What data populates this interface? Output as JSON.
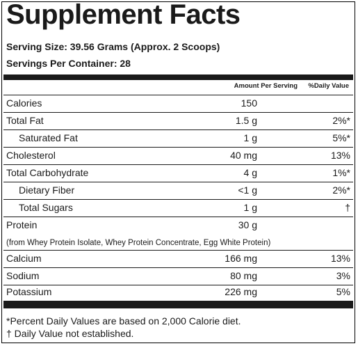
{
  "panel": {
    "title": "Supplement Facts",
    "serving_size": "Serving Size: 39.56 Grams (Approx. 2 Scoops)",
    "servings_per_container": "Servings Per Container: 28",
    "header": {
      "amount": "Amount Per Serving",
      "daily_value": "%Daily Value"
    },
    "rows": [
      {
        "name": "Calories",
        "amount": "150",
        "dv": ""
      },
      {
        "name": "Total Fat",
        "amount": "1.5 g",
        "dv": "2%*"
      },
      {
        "name": "Saturated Fat",
        "amount": "1 g",
        "dv": "5%*"
      },
      {
        "name": "Cholesterol",
        "amount": "40 mg",
        "dv": "13%"
      },
      {
        "name": "Total Carbohydrate",
        "amount": "4 g",
        "dv": "1%*"
      },
      {
        "name": "Dietary Fiber",
        "amount": "<1 g",
        "dv": "2%*"
      },
      {
        "name": "Total Sugars",
        "amount": "1 g",
        "dv": "†"
      },
      {
        "name": "Protein",
        "amount": "30 g",
        "dv": ""
      },
      {
        "name": "Calcium",
        "amount": "166 mg",
        "dv": "13%"
      },
      {
        "name": "Sodium",
        "amount": "80 mg",
        "dv": "3%"
      },
      {
        "name": "Potassium",
        "amount": "226 mg",
        "dv": "5%"
      }
    ],
    "protein_note": "(from Whey Protein Isolate, Whey Protein Concentrate, Egg White Protein)",
    "footnotes": [
      "*Percent Daily Values are based on 2,000 Calorie diet.",
      "† Daily Value not established."
    ]
  }
}
